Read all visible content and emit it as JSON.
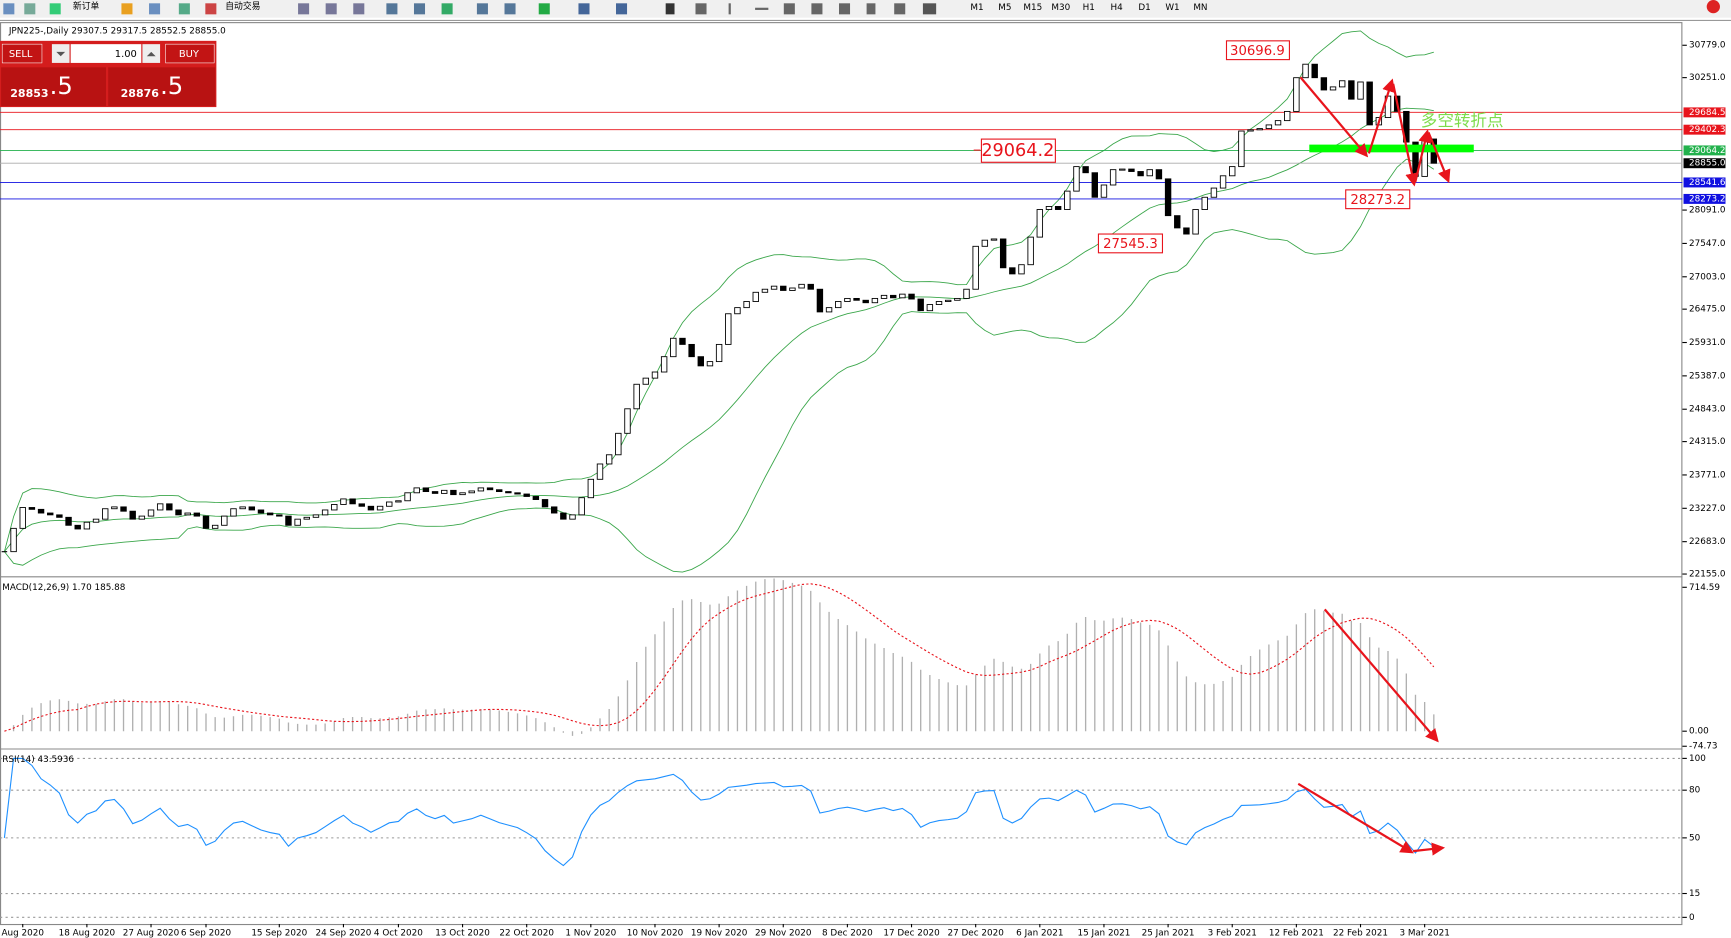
{
  "toolbar": {
    "items": [
      "新订单",
      "自动交易"
    ],
    "timeframes": [
      "M1",
      "M5",
      "M15",
      "M30",
      "H1",
      "H4",
      "D1",
      "W1",
      "MN"
    ]
  },
  "trade_panel": {
    "sell": "SELL",
    "lot": "1.00",
    "buy": "BUY",
    "bid": {
      "big": "28853",
      "small": ".5"
    },
    "ask": {
      "big": "28876",
      "small": ".5"
    }
  },
  "chart_data": [
    {
      "type": "candlestick",
      "title": "JPN225-,Daily  29307.5 29317.5 28552.5 28855.0",
      "values": [
        22520,
        22900,
        23240,
        23210,
        23150,
        23120,
        23080,
        22950,
        22890,
        23000,
        23050,
        23220,
        23250,
        23180,
        23050,
        23100,
        23200,
        23300,
        23200,
        23120,
        23150,
        23100,
        22900,
        22950,
        23100,
        23220,
        23250,
        23200,
        23150,
        23120,
        23100,
        22950,
        23050,
        23080,
        23120,
        23200,
        23290,
        23380,
        23300,
        23260,
        23200,
        23260,
        23330,
        23350,
        23480,
        23560,
        23500,
        23470,
        23520,
        23450,
        23480,
        23510,
        23560,
        23530,
        23500,
        23480,
        23460,
        23420,
        23370,
        23250,
        23150,
        23050,
        23120,
        23400,
        23700,
        23950,
        24100,
        24450,
        24850,
        25250,
        25350,
        25450,
        25700,
        26000,
        25900,
        25700,
        25550,
        25620,
        25900,
        26400,
        26500,
        26600,
        26750,
        26800,
        26850,
        26780,
        26820,
        26880,
        26800,
        26430,
        26500,
        26600,
        26650,
        26620,
        26580,
        26650,
        26700,
        26660,
        26720,
        26640,
        26450,
        26550,
        26600,
        26620,
        26650,
        26800,
        27500,
        27600,
        27620,
        27150,
        27050,
        27200,
        27650,
        28100,
        28150,
        28100,
        28400,
        28800,
        28700,
        28300,
        28500,
        28750,
        28760,
        28720,
        28650,
        28750,
        28600,
        28000,
        27800,
        27700,
        28100,
        28300,
        28450,
        28650,
        28800,
        29380,
        29400,
        29420,
        29480,
        29550,
        29700,
        30250,
        30470,
        30250,
        30050,
        30100,
        30200,
        29900,
        30180,
        29480,
        29600,
        29950,
        29700,
        29200,
        28640,
        29250,
        28855
      ],
      "ylim": [
        22155,
        30779
      ],
      "yticks": [
        {
          "value": 22155,
          "label": "22155.0"
        },
        {
          "value": 22683,
          "label": "22683.0"
        },
        {
          "value": 23227,
          "label": "23227.0"
        },
        {
          "value": 23771,
          "label": "23771.0"
        },
        {
          "value": 24315,
          "label": "24315.0"
        },
        {
          "value": 24843,
          "label": "24843.0"
        },
        {
          "value": 25387,
          "label": "25387.0"
        },
        {
          "value": 25931,
          "label": "25931.0"
        },
        {
          "value": 26475,
          "label": "26475.0"
        },
        {
          "value": 27003,
          "label": "27003.0"
        },
        {
          "value": 27547,
          "label": "27547.0"
        },
        {
          "value": 28091,
          "label": "28091.0"
        },
        {
          "value": 30251,
          "label": "30251.0"
        },
        {
          "value": 30779,
          "label": "30779.0"
        }
      ],
      "xticks": [
        {
          "value": 2,
          "label": "Aug 2020"
        },
        {
          "value": 9,
          "label": "18 Aug 2020"
        },
        {
          "value": 16,
          "label": "27 Aug 2020"
        },
        {
          "value": 22,
          "label": "6 Sep 2020"
        },
        {
          "value": 30,
          "label": "15 Sep 2020"
        },
        {
          "value": 37,
          "label": "24 Sep 2020"
        },
        {
          "value": 43,
          "label": "4 Oct 2020"
        },
        {
          "value": 50,
          "label": "13 Oct 2020"
        },
        {
          "value": 57,
          "label": "22 Oct 2020"
        },
        {
          "value": 64,
          "label": "1 Nov 2020"
        },
        {
          "value": 71,
          "label": "10 Nov 2020"
        },
        {
          "value": 78,
          "label": "19 Nov 2020"
        },
        {
          "value": 85,
          "label": "29 Nov 2020"
        },
        {
          "value": 92,
          "label": "8 Dec 2020"
        },
        {
          "value": 99,
          "label": "17 Dec 2020"
        },
        {
          "value": 106,
          "label": "27 Dec 2020"
        },
        {
          "value": 113,
          "label": "6 Jan 2021"
        },
        {
          "value": 120,
          "label": "15 Jan 2021"
        },
        {
          "value": 127,
          "label": "25 Jan 2021"
        },
        {
          "value": 134,
          "label": "3 Feb 2021"
        },
        {
          "value": 141,
          "label": "12 Feb 2021"
        },
        {
          "value": 148,
          "label": "22 Feb 2021"
        },
        {
          "value": 155,
          "label": "3 Mar 2021"
        }
      ],
      "levels": [
        {
          "value": 29684.5,
          "label": "29684.5",
          "color": "#e8141c"
        },
        {
          "value": 29402.3,
          "label": "29402.3",
          "color": "#e8141c"
        },
        {
          "value": 29064.2,
          "label": "29064.2",
          "color": "#22b14c"
        },
        {
          "value": 28855.0,
          "label": "28855.0",
          "color": "#000000"
        },
        {
          "value": 28541.6,
          "label": "28541.6",
          "color": "#1010e0"
        },
        {
          "value": 28273.2,
          "label": "28273.2",
          "color": "#1010e0"
        }
      ],
      "annotations": [
        "30696.9",
        "29064.2",
        "27545.3",
        "28273.2",
        "多空转折点"
      ]
    },
    {
      "type": "macd",
      "title": "MACD(12,26,9) 1.70 185.88",
      "ylim": [
        -74.73,
        714.59
      ],
      "yticks": [
        714.59,
        {
          "value": 0,
          "label": "0.00"
        },
        -74.73
      ]
    },
    {
      "type": "rsi",
      "title": "RSI(14) 43.5936",
      "ylim": [
        0,
        100
      ],
      "yticks": [
        100,
        80,
        50,
        15,
        0
      ]
    }
  ]
}
